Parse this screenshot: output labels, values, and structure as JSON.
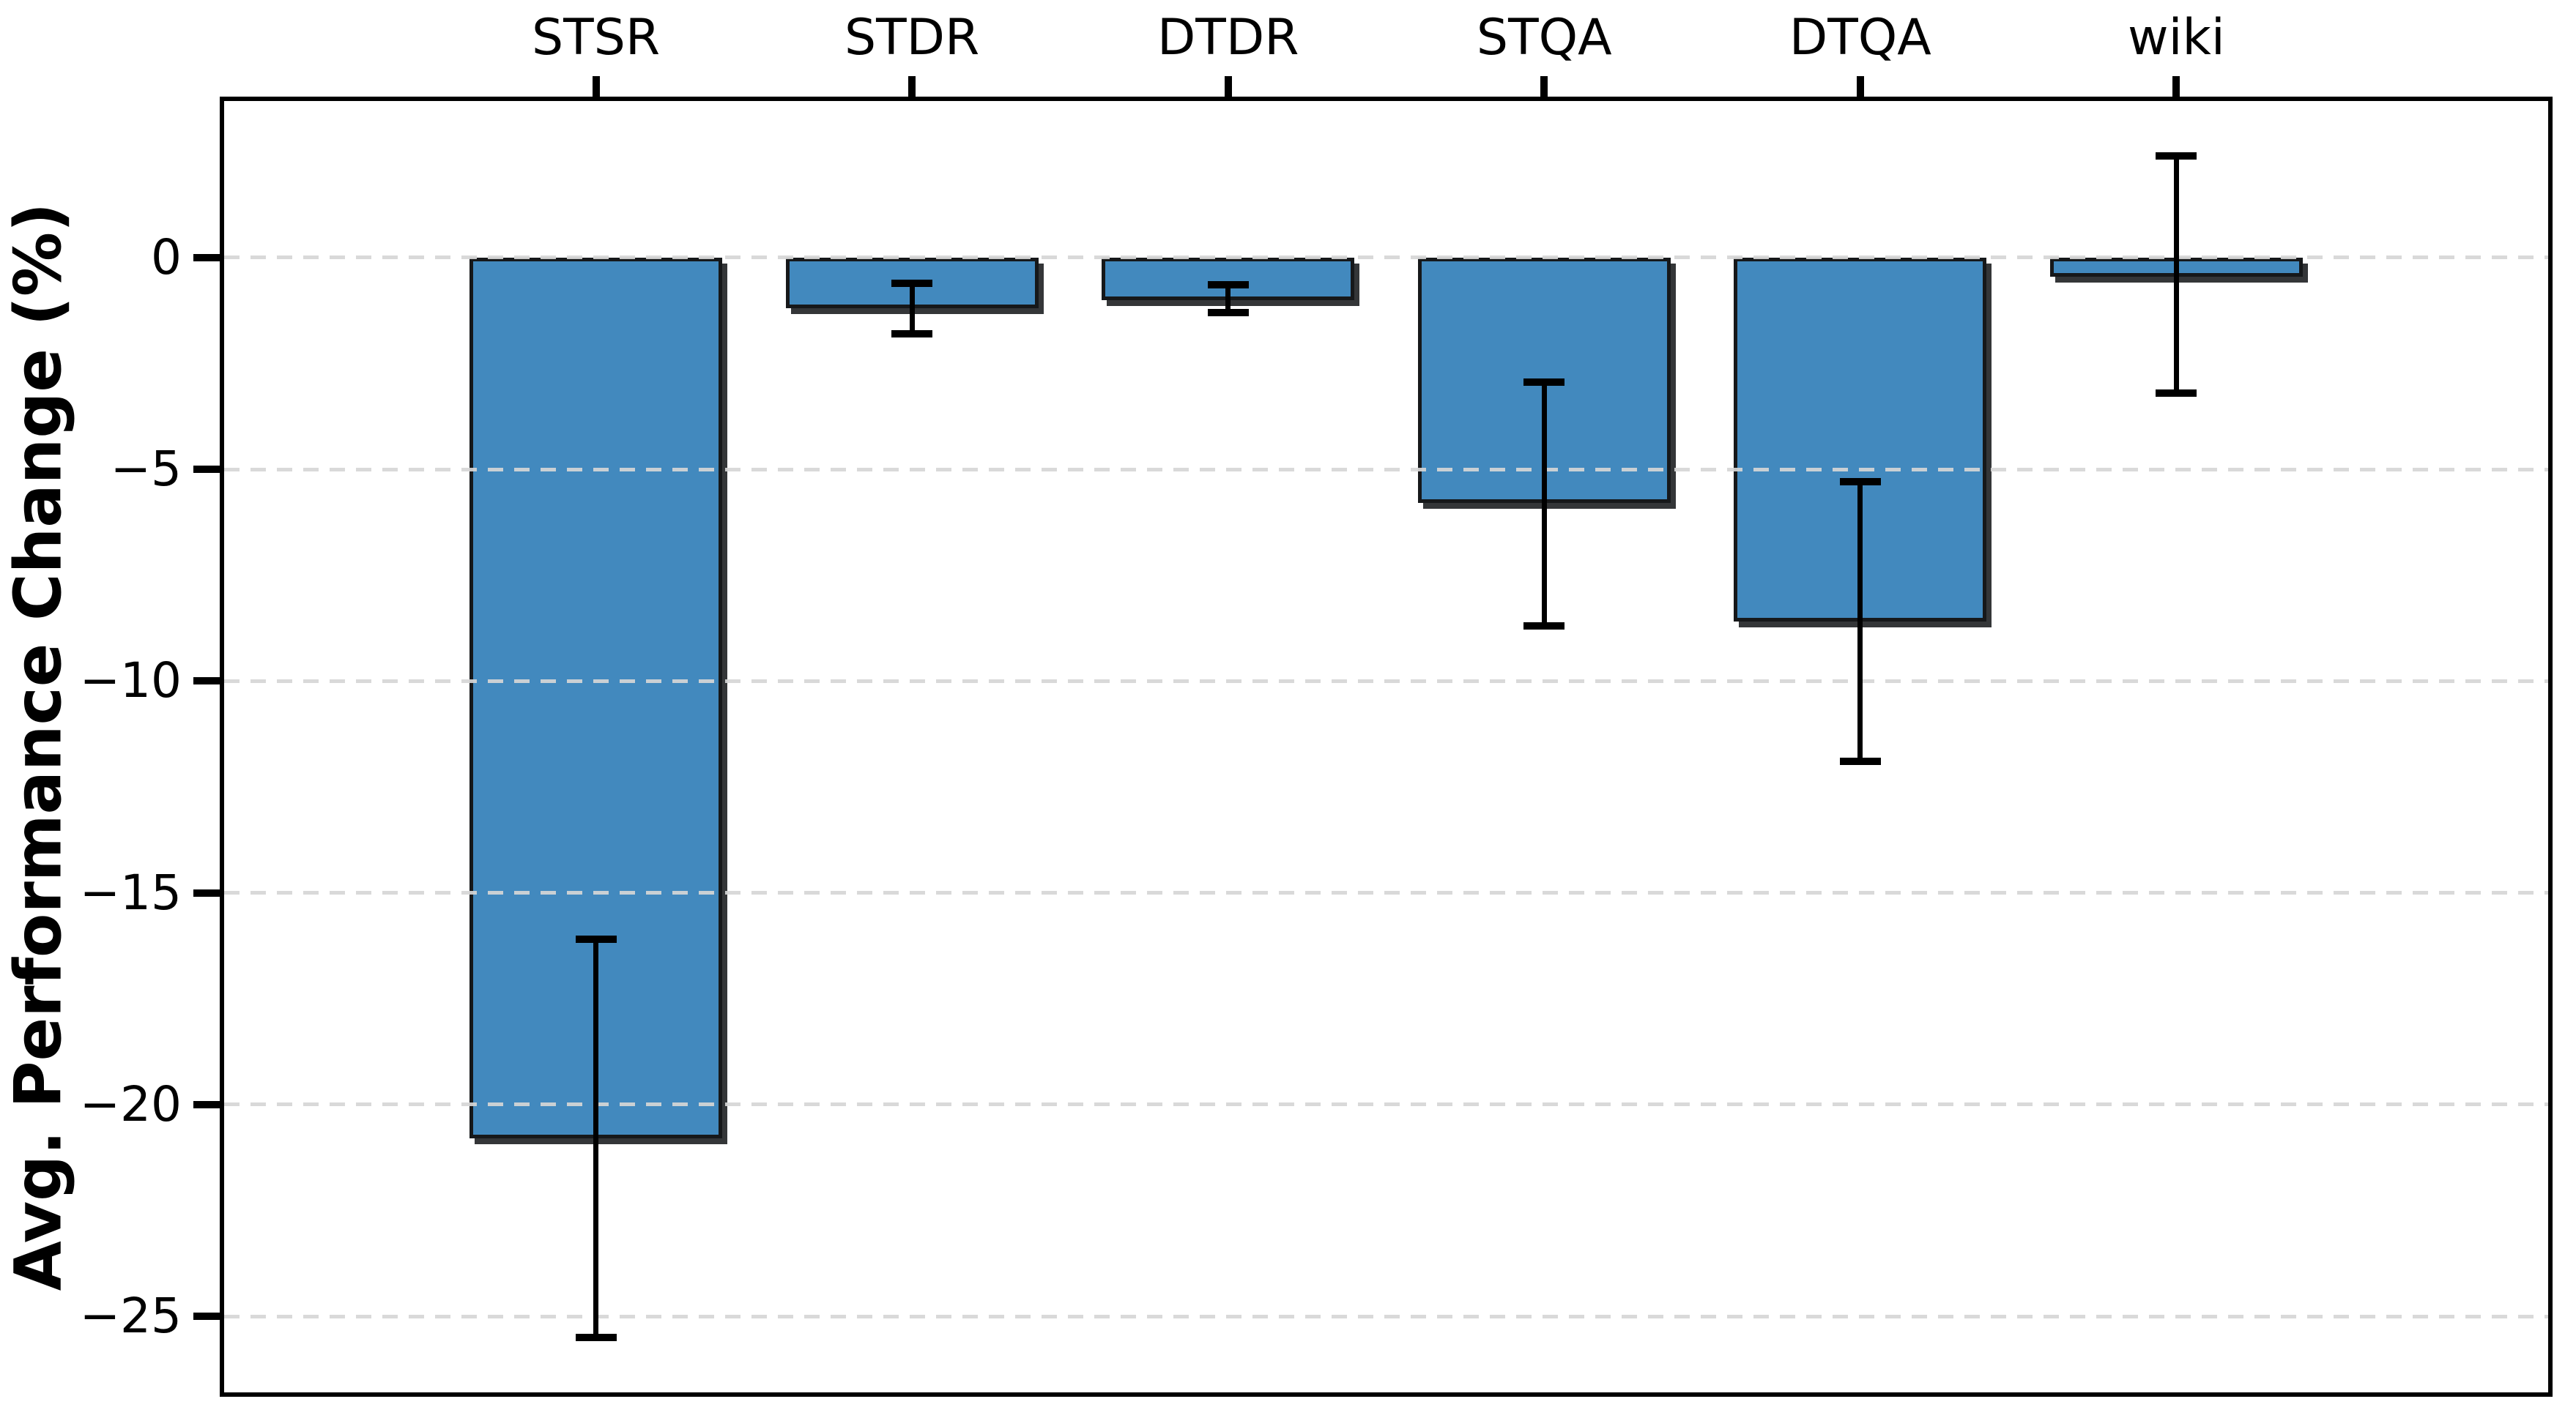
{
  "chart_data": {
    "type": "bar",
    "title": "",
    "xlabel": "",
    "ylabel": "Avg. Performance Change (%)",
    "categories": [
      "STSR",
      "STDR",
      "DTDR",
      "STQA",
      "DTQA",
      "wiki"
    ],
    "values": [
      -20.8,
      -1.2,
      -1.0,
      -5.8,
      -8.6,
      -0.45
    ],
    "error_bar_upper": [
      -16.1,
      -0.6,
      -0.65,
      -2.95,
      -5.3,
      2.4
    ],
    "error_bar_lower": [
      -25.5,
      -1.8,
      -1.3,
      -8.7,
      -11.9,
      -3.2
    ],
    "ylim": [
      -26.9,
      3.8
    ],
    "yticks": [
      0,
      -5,
      -10,
      -15,
      -20,
      -25
    ],
    "ytick_labels": [
      "0",
      "−5",
      "−10",
      "−15",
      "−20",
      "−25"
    ],
    "x_axis_label_position": "top",
    "grid": "horizontal dashed",
    "legend": null,
    "bar_color": "#4289BE",
    "bar_edge_color": "#16181a",
    "error_color": "#000000",
    "gridline_color": "#d6d6d6",
    "background_color": "#ffffff"
  }
}
